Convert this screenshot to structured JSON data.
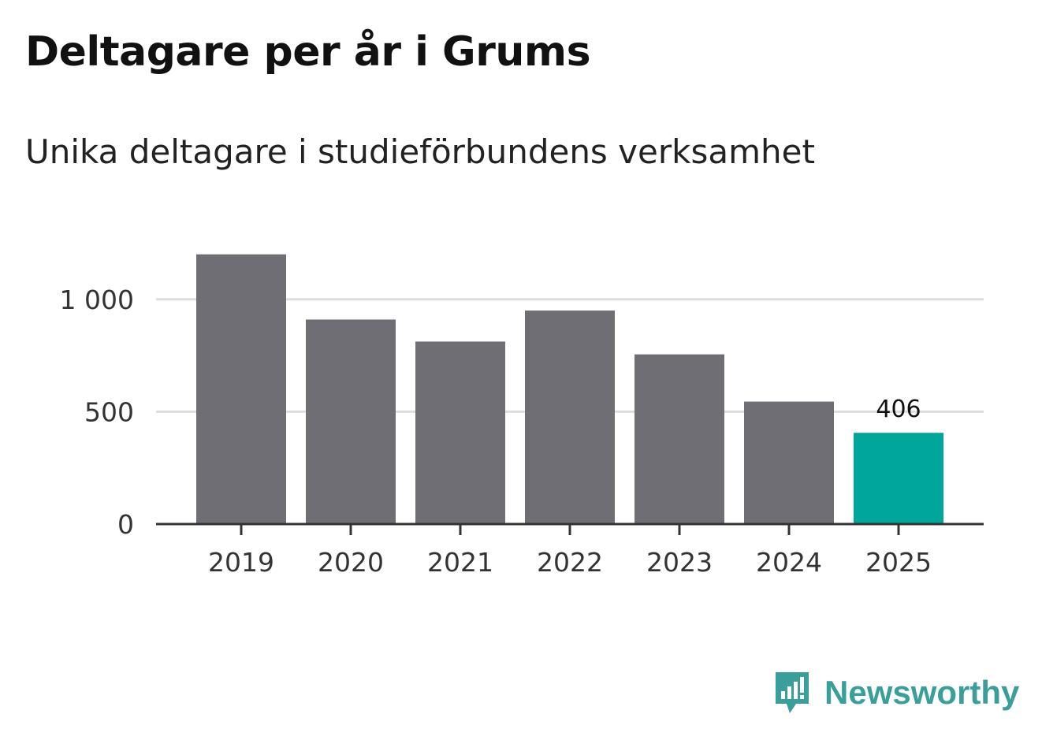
{
  "header": {
    "title": "Deltagare per år i Grums",
    "subtitle": "Unika deltagare i studieförbundens verksamhet"
  },
  "brand": {
    "name": "Newsworthy",
    "color": "#3a9e9a"
  },
  "chart_data": {
    "type": "bar",
    "title": "Deltagare per år i Grums",
    "subtitle": "Unika deltagare i studieförbundens verksamhet",
    "xlabel": "",
    "ylabel": "",
    "categories": [
      "2019",
      "2020",
      "2021",
      "2022",
      "2023",
      "2024",
      "2025"
    ],
    "values": [
      1200,
      910,
      812,
      950,
      755,
      545,
      406
    ],
    "ylim": [
      0,
      1300
    ],
    "yticks": [
      0,
      500,
      1000
    ],
    "ytick_labels": [
      "0",
      "500",
      "1 000"
    ],
    "grid": true,
    "highlight_index": 6,
    "highlight_label": "406",
    "colors": {
      "bar": "#6f6e74",
      "highlight": "#00a69a",
      "grid": "#dddddd",
      "axis": "#333333"
    }
  }
}
